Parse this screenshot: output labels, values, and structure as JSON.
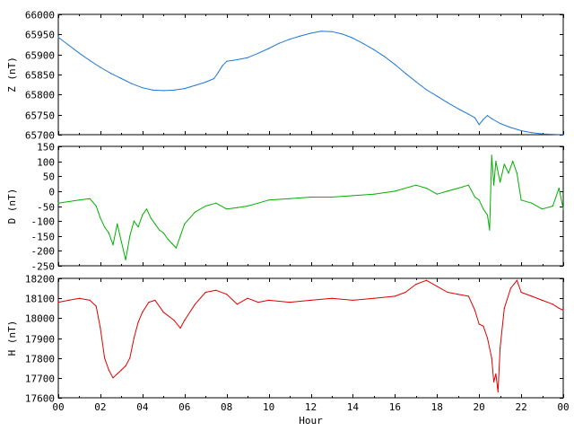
{
  "chart_data": [
    {
      "type": "line",
      "ylabel": "Z (nT)",
      "xlabel": "",
      "color": "#1f77d4",
      "ylim": [
        65700,
        66000
      ],
      "yticks": [
        65700,
        65750,
        65800,
        65850,
        65900,
        65950,
        66000
      ],
      "xlim": [
        0,
        24
      ],
      "series": [
        {
          "x": [
            0,
            0.5,
            1,
            1.5,
            2,
            2.5,
            3,
            3.5,
            4,
            4.5,
            5,
            5.5,
            6,
            6.5,
            7,
            7.4,
            7.6,
            7.8,
            8,
            8.5,
            9,
            9.5,
            10,
            10.5,
            11,
            11.5,
            12,
            12.5,
            13,
            13.5,
            14,
            14.5,
            15,
            15.5,
            16,
            16.5,
            17,
            17.5,
            18,
            18.5,
            19,
            19.5,
            19.8,
            20,
            20.2,
            20.4,
            20.6,
            21,
            21.5,
            22,
            22.5,
            23,
            23.5,
            24
          ],
          "y": [
            65943,
            65923,
            65903,
            65885,
            65868,
            65853,
            65840,
            65827,
            65817,
            65811,
            65810,
            65811,
            65815,
            65823,
            65831,
            65840,
            65855,
            65872,
            65883,
            65887,
            65892,
            65903,
            65915,
            65928,
            65938,
            65946,
            65953,
            65958,
            65957,
            65951,
            65941,
            65927,
            65912,
            65895,
            65875,
            65853,
            65832,
            65812,
            65796,
            65780,
            65765,
            65751,
            65742,
            65725,
            65738,
            65748,
            65740,
            65728,
            65718,
            65710,
            65705,
            65702,
            65701,
            65700
          ]
        }
      ]
    },
    {
      "type": "line",
      "ylabel": "D (nT)",
      "xlabel": "",
      "color": "#00b000",
      "ylim": [
        -250,
        150
      ],
      "yticks": [
        -250,
        -200,
        -150,
        -100,
        -50,
        0,
        50,
        100,
        150
      ],
      "xlim": [
        0,
        24
      ],
      "series": [
        {
          "x": [
            0,
            0.5,
            1,
            1.5,
            1.8,
            2,
            2.2,
            2.4,
            2.6,
            2.8,
            3,
            3.2,
            3.4,
            3.6,
            3.8,
            4,
            4.2,
            4.4,
            4.6,
            4.8,
            5,
            5.2,
            5.4,
            5.6,
            5.8,
            6,
            6.5,
            7,
            7.5,
            8,
            8.5,
            9,
            9.5,
            10,
            11,
            12,
            13,
            14,
            15,
            16,
            17,
            17.5,
            18,
            18.5,
            19,
            19.5,
            19.8,
            20,
            20.2,
            20.4,
            20.5,
            20.6,
            20.7,
            20.8,
            21,
            21.2,
            21.4,
            21.6,
            21.8,
            22,
            22.5,
            23,
            23.5,
            23.8,
            24
          ],
          "y": [
            -40,
            -35,
            -30,
            -25,
            -50,
            -90,
            -120,
            -140,
            -180,
            -110,
            -170,
            -230,
            -150,
            -100,
            -120,
            -80,
            -60,
            -90,
            -110,
            -130,
            -140,
            -160,
            -175,
            -190,
            -150,
            -110,
            -70,
            -50,
            -40,
            -60,
            -55,
            -50,
            -40,
            -30,
            -25,
            -20,
            -20,
            -15,
            -10,
            0,
            20,
            10,
            -10,
            0,
            10,
            20,
            -20,
            -30,
            -60,
            -80,
            -130,
            120,
            20,
            100,
            30,
            90,
            60,
            100,
            60,
            -30,
            -40,
            -60,
            -50,
            10,
            -60
          ]
        }
      ]
    },
    {
      "type": "line",
      "ylabel": "H (nT)",
      "xlabel": "Hour",
      "color": "#e00000",
      "ylim": [
        17600,
        18200
      ],
      "yticks": [
        17600,
        17700,
        17800,
        17900,
        18000,
        18100,
        18200
      ],
      "xlim": [
        0,
        24
      ],
      "xticklabels": [
        "00",
        "02",
        "04",
        "06",
        "08",
        "10",
        "12",
        "14",
        "16",
        "18",
        "20",
        "22",
        "00"
      ],
      "series": [
        {
          "x": [
            0,
            0.5,
            1,
            1.5,
            1.8,
            2,
            2.2,
            2.4,
            2.6,
            2.8,
            3,
            3.2,
            3.4,
            3.6,
            3.8,
            4,
            4.3,
            4.6,
            5,
            5.5,
            5.8,
            6,
            6.5,
            7,
            7.5,
            8,
            8.5,
            9,
            9.5,
            10,
            11,
            12,
            13,
            14,
            15,
            16,
            16.5,
            17,
            17.5,
            18,
            18.5,
            19,
            19.5,
            19.8,
            20,
            20.2,
            20.4,
            20.6,
            20.7,
            20.8,
            20.9,
            21,
            21.2,
            21.5,
            21.8,
            22,
            22.5,
            23,
            23.5,
            23.8,
            24
          ],
          "y": [
            18080,
            18090,
            18100,
            18090,
            18060,
            17950,
            17800,
            17740,
            17700,
            17720,
            17740,
            17760,
            17800,
            17900,
            17980,
            18030,
            18080,
            18090,
            18030,
            17990,
            17950,
            17990,
            18070,
            18130,
            18140,
            18120,
            18070,
            18100,
            18080,
            18090,
            18080,
            18090,
            18100,
            18090,
            18100,
            18110,
            18130,
            18170,
            18190,
            18160,
            18130,
            18120,
            18110,
            18040,
            17970,
            17960,
            17900,
            17800,
            17680,
            17720,
            17630,
            17850,
            18050,
            18150,
            18190,
            18130,
            18110,
            18090,
            18070,
            18050,
            18040
          ]
        }
      ]
    }
  ]
}
